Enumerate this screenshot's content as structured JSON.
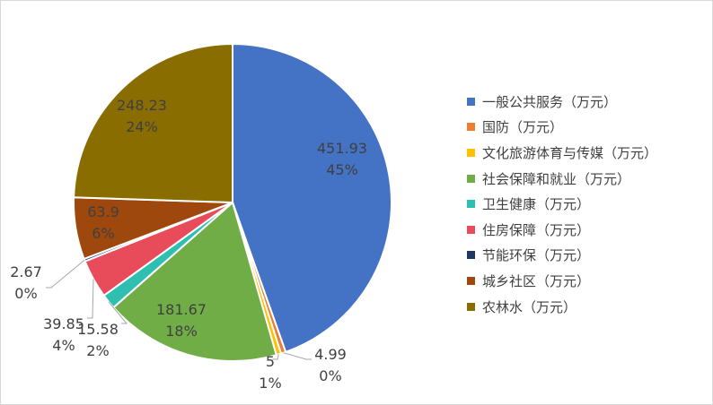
{
  "colors": {
    "blue": "#4472C4",
    "orange": "#ED7D31",
    "gold": "#FFC000",
    "green": "#70AD47",
    "teal": "#2EBFB0",
    "red": "#E84B5A",
    "navy": "#203864",
    "brown": "#9E480E",
    "olive": "#8A6D00",
    "leader": "#a6a6a6"
  },
  "chart_data": {
    "type": "pie",
    "legend_position": "right",
    "slices": [
      {
        "name": "一般公共服务（万元）",
        "value": 451.93,
        "value_label": "451.93",
        "percent_label": "45%",
        "color": "#4472C4"
      },
      {
        "name": "国防（万元）",
        "value": 4.99,
        "value_label": "4.99",
        "percent_label": "0%",
        "color": "#ED7D31"
      },
      {
        "name": "文化旅游体育与传媒（万元）",
        "value": 5,
        "value_label": "5",
        "percent_label": "1%",
        "color": "#FFC000"
      },
      {
        "name": "社会保障和就业（万元）",
        "value": 181.67,
        "value_label": "181.67",
        "percent_label": "18%",
        "color": "#70AD47"
      },
      {
        "name": "卫生健康（万元）",
        "value": 15.58,
        "value_label": "15.58",
        "percent_label": "2%",
        "color": "#2EBFB0"
      },
      {
        "name": "住房保障（万元）",
        "value": 39.85,
        "value_label": "39.85",
        "percent_label": "4%",
        "color": "#E84B5A"
      },
      {
        "name": "节能环保（万元）",
        "value": 2.67,
        "value_label": "2.67",
        "percent_label": "0%",
        "color": "#203864"
      },
      {
        "name": "城乡社区（万元）",
        "value": 63.9,
        "value_label": "63.9",
        "percent_label": "6%",
        "color": "#9E480E"
      },
      {
        "name": "农林水（万元）",
        "value": 248.23,
        "value_label": "248.23",
        "percent_label": "24%",
        "color": "#8A6D00"
      }
    ]
  }
}
